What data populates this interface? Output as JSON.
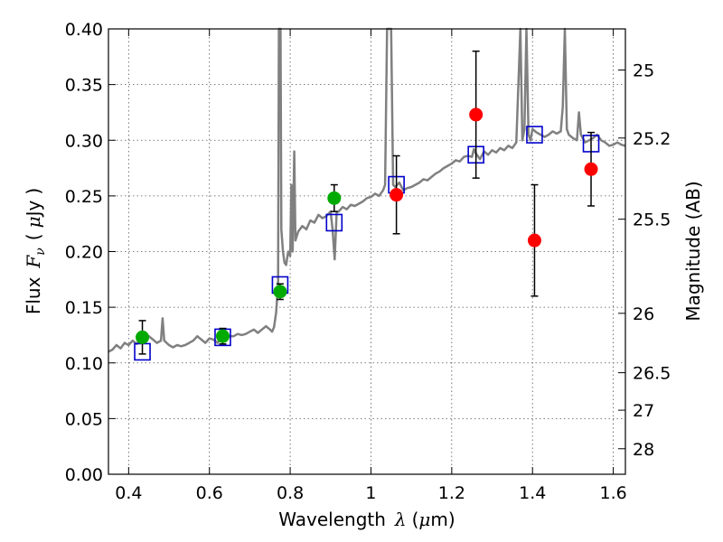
{
  "chart_data": {
    "type": "scatter",
    "title": "",
    "xlabel": {
      "prefix": "Wavelength",
      "symbol": "λ",
      "open": "(",
      "unit_mu": "μ",
      "unit_rest": "m",
      "close": ")"
    },
    "ylabel": {
      "prefix": "Flux",
      "symbol": "F",
      "subscript": "ν",
      "open": "(",
      "unit_mu": "μ",
      "unit_rest": "Jy",
      "close": ")"
    },
    "y2label": "Magnitude (AB)",
    "xlim": [
      0.35,
      1.63
    ],
    "ylim": [
      0.0,
      0.4
    ],
    "grid": true,
    "x_ticks": [
      {
        "value": 0.4,
        "label": "0.4"
      },
      {
        "value": 0.6,
        "label": "0.6"
      },
      {
        "value": 0.8,
        "label": "0.8"
      },
      {
        "value": 1.0,
        "label": "1"
      },
      {
        "value": 1.2,
        "label": "1.2"
      },
      {
        "value": 1.4,
        "label": "1.4"
      },
      {
        "value": 1.6,
        "label": "1.6"
      }
    ],
    "y_ticks": [
      {
        "value": 0.0,
        "label": "0.00"
      },
      {
        "value": 0.05,
        "label": "0.05"
      },
      {
        "value": 0.1,
        "label": "0.10"
      },
      {
        "value": 0.15,
        "label": "0.15"
      },
      {
        "value": 0.2,
        "label": "0.20"
      },
      {
        "value": 0.25,
        "label": "0.25"
      },
      {
        "value": 0.3,
        "label": "0.30"
      },
      {
        "value": 0.35,
        "label": "0.35"
      },
      {
        "value": 0.4,
        "label": "0.40"
      }
    ],
    "mag_ticks": [
      {
        "mag": 25,
        "label": "25"
      },
      {
        "mag": 25.2,
        "label": "25.2"
      },
      {
        "mag": 25.5,
        "label": "25.5"
      },
      {
        "mag": 26,
        "label": "26"
      },
      {
        "mag": 26.5,
        "label": "26.5"
      },
      {
        "mag": 27,
        "label": "27"
      },
      {
        "mag": 28,
        "label": "28"
      }
    ],
    "colors": {
      "model": "#808080",
      "model_photometry": "#0000cc",
      "optical_photometry": "#00aa00",
      "nir_photometry": "#ff0000",
      "errorbar": "#000000",
      "grid": "#555555"
    },
    "model_spectrum": [
      [
        0.35,
        0.11
      ],
      [
        0.36,
        0.112
      ],
      [
        0.37,
        0.116
      ],
      [
        0.38,
        0.113
      ],
      [
        0.39,
        0.118
      ],
      [
        0.4,
        0.116
      ],
      [
        0.41,
        0.12
      ],
      [
        0.42,
        0.117
      ],
      [
        0.43,
        0.122
      ],
      [
        0.44,
        0.12
      ],
      [
        0.45,
        0.124
      ],
      [
        0.46,
        0.121
      ],
      [
        0.47,
        0.118
      ],
      [
        0.48,
        0.12
      ],
      [
        0.484,
        0.14
      ],
      [
        0.488,
        0.12
      ],
      [
        0.5,
        0.116
      ],
      [
        0.51,
        0.114
      ],
      [
        0.52,
        0.116
      ],
      [
        0.53,
        0.115
      ],
      [
        0.54,
        0.116
      ],
      [
        0.55,
        0.118
      ],
      [
        0.56,
        0.12
      ],
      [
        0.57,
        0.124
      ],
      [
        0.58,
        0.121
      ],
      [
        0.59,
        0.118
      ],
      [
        0.6,
        0.122
      ],
      [
        0.61,
        0.121
      ],
      [
        0.62,
        0.118
      ],
      [
        0.63,
        0.123
      ],
      [
        0.64,
        0.122
      ],
      [
        0.65,
        0.124
      ],
      [
        0.66,
        0.124
      ],
      [
        0.67,
        0.126
      ],
      [
        0.68,
        0.125
      ],
      [
        0.69,
        0.126
      ],
      [
        0.7,
        0.128
      ],
      [
        0.71,
        0.13
      ],
      [
        0.72,
        0.127
      ],
      [
        0.73,
        0.13
      ],
      [
        0.74,
        0.133
      ],
      [
        0.75,
        0.13
      ],
      [
        0.755,
        0.128
      ],
      [
        0.76,
        0.132
      ],
      [
        0.765,
        0.145
      ],
      [
        0.77,
        0.17
      ],
      [
        0.772,
        0.4
      ],
      [
        0.776,
        0.4
      ],
      [
        0.778,
        0.22
      ],
      [
        0.782,
        0.2
      ],
      [
        0.786,
        0.19
      ],
      [
        0.79,
        0.188
      ],
      [
        0.795,
        0.2
      ],
      [
        0.8,
        0.196
      ],
      [
        0.803,
        0.26
      ],
      [
        0.806,
        0.2
      ],
      [
        0.81,
        0.29
      ],
      [
        0.813,
        0.21
      ],
      [
        0.82,
        0.218
      ],
      [
        0.83,
        0.223
      ],
      [
        0.84,
        0.22
      ],
      [
        0.85,
        0.228
      ],
      [
        0.86,
        0.226
      ],
      [
        0.87,
        0.233
      ],
      [
        0.88,
        0.23
      ],
      [
        0.89,
        0.232
      ],
      [
        0.9,
        0.236
      ],
      [
        0.905,
        0.22
      ],
      [
        0.91,
        0.193
      ],
      [
        0.915,
        0.235
      ],
      [
        0.92,
        0.236
      ],
      [
        0.93,
        0.24
      ],
      [
        0.94,
        0.238
      ],
      [
        0.95,
        0.242
      ],
      [
        0.96,
        0.241
      ],
      [
        0.97,
        0.243
      ],
      [
        0.98,
        0.245
      ],
      [
        0.99,
        0.248
      ],
      [
        1.0,
        0.249
      ],
      [
        1.01,
        0.252
      ],
      [
        1.02,
        0.25
      ],
      [
        1.03,
        0.255
      ],
      [
        1.035,
        0.26
      ],
      [
        1.04,
        0.4
      ],
      [
        1.05,
        0.4
      ],
      [
        1.055,
        0.26
      ],
      [
        1.06,
        0.258
      ],
      [
        1.07,
        0.262
      ],
      [
        1.08,
        0.255
      ],
      [
        1.09,
        0.257
      ],
      [
        1.1,
        0.258
      ],
      [
        1.11,
        0.26
      ],
      [
        1.12,
        0.262
      ],
      [
        1.13,
        0.265
      ],
      [
        1.14,
        0.264
      ],
      [
        1.15,
        0.267
      ],
      [
        1.16,
        0.27
      ],
      [
        1.17,
        0.272
      ],
      [
        1.18,
        0.275
      ],
      [
        1.19,
        0.277
      ],
      [
        1.2,
        0.279
      ],
      [
        1.21,
        0.282
      ],
      [
        1.22,
        0.281
      ],
      [
        1.23,
        0.285
      ],
      [
        1.24,
        0.286
      ],
      [
        1.25,
        0.285
      ],
      [
        1.255,
        0.292
      ],
      [
        1.26,
        0.288
      ],
      [
        1.27,
        0.283
      ],
      [
        1.28,
        0.29
      ],
      [
        1.29,
        0.287
      ],
      [
        1.3,
        0.291
      ],
      [
        1.31,
        0.289
      ],
      [
        1.32,
        0.293
      ],
      [
        1.33,
        0.291
      ],
      [
        1.34,
        0.295
      ],
      [
        1.35,
        0.293
      ],
      [
        1.36,
        0.298
      ],
      [
        1.37,
        0.4
      ],
      [
        1.375,
        0.3
      ],
      [
        1.38,
        0.31
      ],
      [
        1.385,
        0.4
      ],
      [
        1.39,
        0.305
      ],
      [
        1.395,
        0.3
      ],
      [
        1.4,
        0.31
      ],
      [
        1.41,
        0.307
      ],
      [
        1.42,
        0.305
      ],
      [
        1.43,
        0.303
      ],
      [
        1.44,
        0.305
      ],
      [
        1.45,
        0.308
      ],
      [
        1.46,
        0.306
      ],
      [
        1.47,
        0.308
      ],
      [
        1.475,
        0.33
      ],
      [
        1.48,
        0.4
      ],
      [
        1.485,
        0.31
      ],
      [
        1.49,
        0.305
      ],
      [
        1.5,
        0.302
      ],
      [
        1.51,
        0.3
      ],
      [
        1.515,
        0.325
      ],
      [
        1.52,
        0.305
      ],
      [
        1.53,
        0.298
      ],
      [
        1.54,
        0.3
      ],
      [
        1.55,
        0.302
      ],
      [
        1.56,
        0.305
      ],
      [
        1.57,
        0.3
      ],
      [
        1.58,
        0.298
      ],
      [
        1.59,
        0.295
      ],
      [
        1.6,
        0.296
      ],
      [
        1.61,
        0.298
      ],
      [
        1.62,
        0.296
      ],
      [
        1.63,
        0.295
      ]
    ],
    "series": [
      {
        "kind": "model_photometry",
        "marker": "square",
        "x": [
          0.434,
          0.633,
          0.775,
          0.909,
          1.063,
          1.26,
          1.405,
          1.545
        ],
        "y": [
          0.11,
          0.123,
          0.17,
          0.226,
          0.26,
          0.287,
          0.305,
          0.297
        ]
      },
      {
        "kind": "optical_photometry",
        "marker": "circle",
        "x": [
          0.434,
          0.633,
          0.775,
          0.909
        ],
        "y": [
          0.123,
          0.124,
          0.164,
          0.248
        ],
        "yerr": [
          0.015,
          0.007,
          0.007,
          0.012
        ]
      },
      {
        "kind": "nir_photometry",
        "marker": "circle",
        "x": [
          1.063,
          1.26,
          1.405,
          1.545
        ],
        "y": [
          0.251,
          0.323,
          0.21,
          0.274
        ],
        "yerr": [
          0.035,
          0.057,
          0.05,
          0.033
        ]
      }
    ]
  }
}
